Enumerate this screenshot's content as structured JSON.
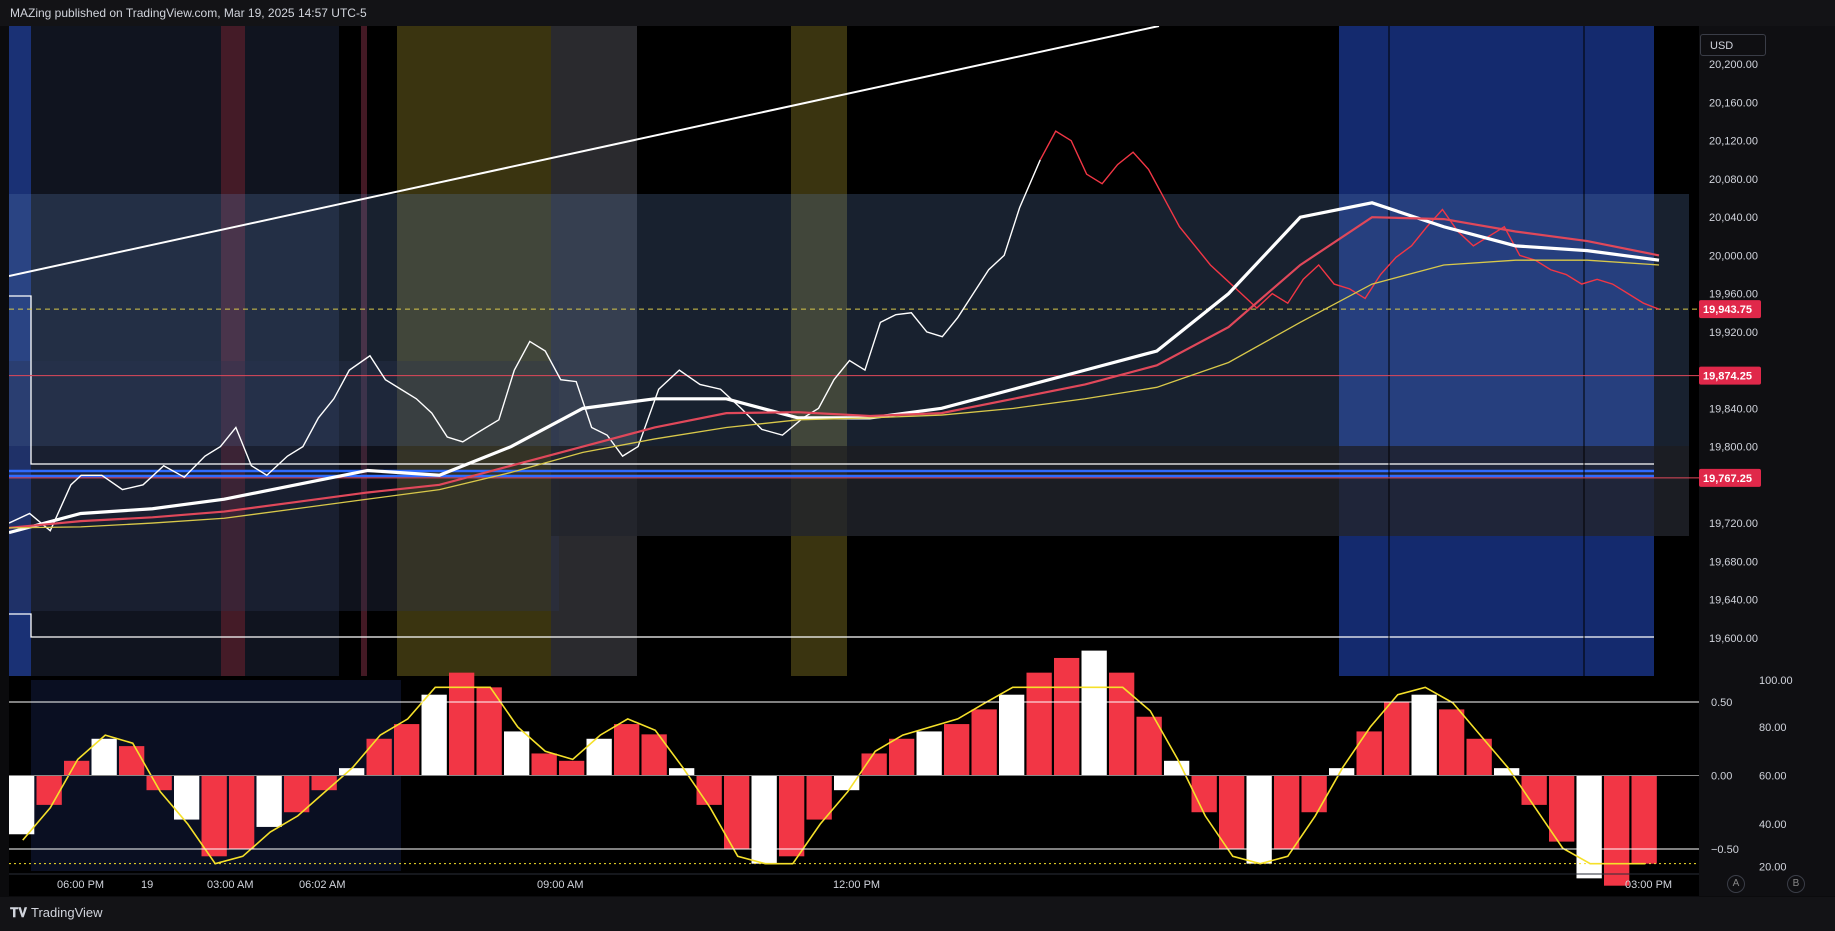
{
  "header": {
    "publisher": "MAZing published on TradingView.com, Mar 19, 2025 14:57 UTC-5"
  },
  "currency_button": "USD",
  "footer": {
    "brand": "TradingView",
    "btn_a": "A",
    "btn_b": "B"
  },
  "colors": {
    "background": "#000000",
    "price_up": "#ffffff",
    "price_down": "#f23645",
    "ma_white": "#ffffff",
    "ma_red": "#e0485a",
    "ma_yellow": "#d8c84a",
    "session_blue": "#1e3a8a",
    "session_olive": "#3a3410",
    "session_gray": "#2a2a2e",
    "osc_yellow": "#f5e02a"
  },
  "chart_data": [
    {
      "type": "line",
      "title": "",
      "ylim": [
        19560,
        20240
      ],
      "y_ticks": [
        "20,200.00",
        "20,160.00",
        "20,120.00",
        "20,080.00",
        "20,040.00",
        "20,000.00",
        "19,960.00",
        "19,920.00",
        "19,840.00",
        "19,800.00",
        "19,720.00",
        "19,680.00",
        "19,640.00",
        "19,600.00"
      ],
      "x_labels": [
        "06:00 PM",
        "19",
        "03:00 AM",
        "06:02 AM",
        "09:00 AM",
        "12:00 PM",
        "03:00 PM"
      ],
      "price_labels": [
        {
          "value": 19943.75,
          "text": "19,943.75"
        },
        {
          "value": 19874.25,
          "text": "19,874.25"
        },
        {
          "value": 19767.25,
          "text": "19,767.25"
        }
      ],
      "series": [
        {
          "x": [
            0,
            4,
            8,
            12,
            14,
            18,
            22,
            26,
            30,
            34,
            38,
            41,
            44,
            47,
            50,
            54,
            57,
            60,
            63,
            66,
            70,
            73,
            76,
            79,
            82,
            85,
            88,
            91,
            95,
            98,
            101,
            104,
            107,
            110,
            113,
            116,
            119,
            122,
            126,
            130,
            134,
            138,
            142,
            146,
            150,
            154,
            157,
            160,
            163,
            166,
            169,
            172,
            175,
            178,
            181,
            184,
            187,
            190,
            193,
            196,
            200
          ],
          "y": [
            19720,
            19730,
            19712,
            19760,
            19770,
            19770,
            19755,
            19760,
            19780,
            19768,
            19790,
            19800,
            19820,
            19780,
            19770,
            19790,
            19800,
            19830,
            19850,
            19880,
            19895,
            19870,
            19860,
            19850,
            19835,
            19810,
            19805,
            19815,
            19828,
            19880,
            19910,
            19900,
            19870,
            19868,
            19820,
            19812,
            19790,
            19800,
            19860,
            19880,
            19865,
            19860,
            19840,
            19818,
            19812,
            19830,
            19840,
            19870,
            19890,
            19880,
            19930,
            19938,
            19940,
            19920,
            19915,
            19935,
            19960,
            19985,
            20000,
            20050,
            20100
          ]
        },
        {
          "x": [
            200,
            203,
            206,
            209,
            212,
            215,
            218,
            221,
            224,
            227,
            230,
            233,
            236,
            239,
            242,
            245,
            248,
            251,
            254,
            257,
            260,
            263,
            266,
            269,
            272,
            275,
            278,
            281,
            284,
            287,
            290,
            293,
            296,
            299,
            302,
            305,
            308,
            311,
            314,
            317,
            320
          ],
          "y": [
            20100,
            20130,
            20120,
            20085,
            20075,
            20095,
            20108,
            20090,
            20060,
            20030,
            20010,
            19990,
            19975,
            19960,
            19945,
            19960,
            19950,
            19975,
            19990,
            19970,
            19965,
            19955,
            19980,
            19998,
            20010,
            20030,
            20048,
            20025,
            20010,
            20020,
            20030,
            20000,
            19995,
            19985,
            19980,
            19970,
            19975,
            19970,
            19960,
            19950,
            19943.75
          ]
        }
      ],
      "moving_averages": [
        {
          "y": [
            19710,
            19730,
            19735,
            19745,
            19760,
            19775,
            19770,
            19800,
            19840,
            19850,
            19850,
            19830,
            19830,
            19840,
            19860,
            19880,
            19900,
            19960,
            20040,
            20055,
            20030,
            20010,
            20005,
            19995
          ]
        },
        {
          "y": [
            19715,
            19722,
            19726,
            19732,
            19742,
            19752,
            19760,
            19780,
            19800,
            19820,
            19835,
            19836,
            19832,
            19835,
            19850,
            19865,
            19885,
            19925,
            19990,
            20040,
            20038,
            20025,
            20015,
            20000
          ]
        },
        {
          "y": [
            19715,
            19716,
            19720,
            19725,
            19735,
            19745,
            19755,
            19773,
            19794,
            19808,
            19820,
            19828,
            19830,
            19833,
            19840,
            19850,
            19862,
            19888,
            19930,
            19970,
            19990,
            19995,
            19995,
            19990
          ]
        }
      ]
    },
    {
      "type": "bar",
      "title": "",
      "ylim": [
        -0.65,
        0.65
      ],
      "left_ticks": [
        "0.50",
        "0.00",
        "−0.50"
      ],
      "right_ticks": [
        "100.00",
        "80.00",
        "60.00",
        "40.00",
        "20.00"
      ],
      "series": [
        {
          "values": [
            -0.4,
            -0.2,
            0.1,
            0.25,
            0.2,
            -0.1,
            -0.3,
            -0.55,
            -0.5,
            -0.35,
            -0.25,
            -0.1,
            0.05,
            0.25,
            0.35,
            0.55,
            0.7,
            0.6,
            0.3,
            0.15,
            0.1,
            0.25,
            0.35,
            0.28,
            0.05,
            -0.2,
            -0.5,
            -0.6,
            -0.55,
            -0.3,
            -0.1,
            0.15,
            0.25,
            0.3,
            0.35,
            0.45,
            0.55,
            0.7,
            0.8,
            0.85,
            0.7,
            0.4,
            0.1,
            -0.25,
            -0.5,
            -0.6,
            -0.5,
            -0.25,
            0.05,
            0.3,
            0.5,
            0.55,
            0.45,
            0.25,
            0.05,
            -0.2,
            -0.45,
            -0.7,
            -0.75,
            -0.6
          ]
        }
      ]
    }
  ]
}
